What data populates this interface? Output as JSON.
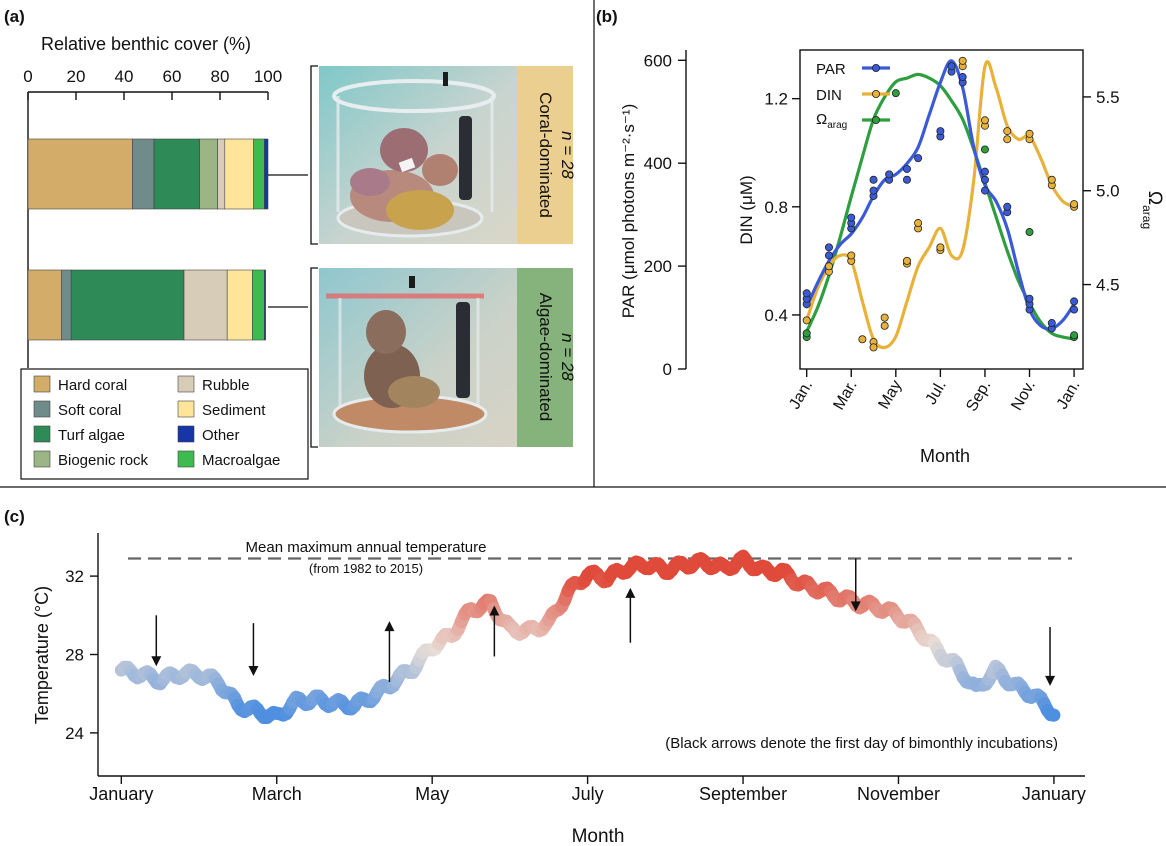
{
  "panel_labels": [
    "(a)",
    "(b)",
    "(c)"
  ],
  "colors": {
    "hard_coral": "#D2AC68",
    "soft_coral": "#6F8B8A",
    "turf_algae": "#2E8B57",
    "biogenic_rock": "#9BB584",
    "rubble": "#D6CCB8",
    "sediment": "#FFE59A",
    "other": "#1535A8",
    "macroalgae": "#3DBB4E",
    "par_line": "#3B5BD6",
    "din_line": "#E8B23A",
    "omega_line": "#2E9E3F",
    "coral_badge": "#EBCF90",
    "algae_badge": "#86B27C",
    "temp_cold": "#4F8FE0",
    "temp_mid": "#E8DDD6",
    "temp_hot": "#E04A3A"
  },
  "photos": [
    {
      "label": "Coral-dominated",
      "n": "n = 28"
    },
    {
      "label": "Algae-dominated",
      "n": "n = 28"
    }
  ],
  "chart_data": [
    {
      "type": "bar",
      "orientation": "horizontal-stacked",
      "title": "Relative benthic cover (%)",
      "xlim": [
        0,
        100
      ],
      "xticks": [
        "0",
        "20",
        "40",
        "60",
        "80",
        "100"
      ],
      "categories": [
        "Coral-dominated",
        "Algae-dominated"
      ],
      "series": [
        {
          "name": "Hard coral",
          "values": [
            43.5,
            14
          ]
        },
        {
          "name": "Soft coral",
          "values": [
            9,
            4
          ]
        },
        {
          "name": "Turf algae",
          "values": [
            19,
            47
          ]
        },
        {
          "name": "Biogenic rock",
          "values": [
            7.5,
            0
          ]
        },
        {
          "name": "Rubble",
          "values": [
            3,
            18
          ]
        },
        {
          "name": "Sediment",
          "values": [
            12,
            10.5
          ]
        },
        {
          "name": "Macroalgae",
          "values": [
            4.5,
            5
          ]
        },
        {
          "name": "Other",
          "values": [
            1.5,
            0.5
          ]
        }
      ],
      "legend": [
        "Hard coral",
        "Soft coral",
        "Turf algae",
        "Biogenic rock",
        "Rubble",
        "Sediment",
        "Other",
        "Macroalgae"
      ],
      "legend_placement": "bottom"
    },
    {
      "type": "line",
      "xlabel": "Month",
      "xticks": [
        "Jan.",
        "Mar.",
        "May",
        "Jul.",
        "Sep.",
        "Nov.",
        "Jan."
      ],
      "xlim": [
        0.7,
        13.4
      ],
      "y_far_left": {
        "label": "PAR (μmol photons m⁻²·s⁻¹)",
        "lim": [
          0,
          620
        ],
        "ticks": [
          "0",
          "200",
          "400",
          "600"
        ]
      },
      "y_left": {
        "label": "DIN (μM)",
        "lim": [
          0.2,
          1.38
        ],
        "ticks": [
          "0.4",
          "0.8",
          "1.2"
        ]
      },
      "y_right": {
        "label": "Ωarag",
        "lim": [
          4.05,
          5.75
        ],
        "ticks": [
          "4.5",
          "5.0",
          "5.5"
        ]
      },
      "legend": [
        "PAR",
        "DIN",
        "Ωarag"
      ],
      "legend_placement": "top-left",
      "series": [
        {
          "name": "PAR",
          "axis": "left-DIN-scale",
          "curve_x": [
            1,
            1.5,
            2,
            2.5,
            3,
            3.5,
            4,
            4.5,
            5,
            5.5,
            6,
            6.5,
            7,
            7.5,
            8,
            8.5,
            9,
            9.5,
            10,
            10.5,
            11,
            11.5,
            12,
            12.5,
            13
          ],
          "curve_y": [
            0.43,
            0.52,
            0.6,
            0.66,
            0.7,
            0.76,
            0.84,
            0.9,
            0.92,
            0.96,
            1.02,
            1.14,
            1.26,
            1.34,
            1.24,
            1.02,
            0.88,
            0.82,
            0.72,
            0.56,
            0.42,
            0.36,
            0.35,
            0.38,
            0.44
          ],
          "points_x": [
            1,
            1,
            1,
            2,
            2,
            3,
            3,
            3,
            4,
            4,
            4,
            4.7,
            4.7,
            5.5,
            5.5,
            6,
            7,
            7,
            7.5,
            7.5,
            8,
            8,
            9,
            9,
            9,
            10,
            10,
            11,
            11,
            11,
            12,
            12,
            13,
            13
          ],
          "points_y": [
            0.44,
            0.46,
            0.48,
            0.62,
            0.65,
            0.72,
            0.74,
            0.76,
            0.84,
            0.86,
            0.9,
            0.9,
            0.92,
            0.9,
            0.94,
            0.98,
            1.06,
            1.08,
            1.3,
            1.32,
            1.26,
            1.28,
            0.9,
            0.93,
            0.86,
            0.78,
            0.8,
            0.42,
            0.44,
            0.46,
            0.35,
            0.37,
            0.42,
            0.45
          ]
        },
        {
          "name": "DIN",
          "axis": "left",
          "curve_x": [
            1,
            1.5,
            2,
            2.5,
            3,
            3.5,
            4,
            4.5,
            5,
            5.5,
            6,
            6.5,
            7,
            7.5,
            8,
            8.5,
            9,
            9.5,
            10,
            10.5,
            11,
            11.5,
            12,
            12.5,
            13
          ],
          "curve_y": [
            0.38,
            0.5,
            0.58,
            0.62,
            0.6,
            0.45,
            0.31,
            0.28,
            0.32,
            0.45,
            0.58,
            0.65,
            0.72,
            0.62,
            0.64,
            0.9,
            1.32,
            1.24,
            1.1,
            1.05,
            1.06,
            0.98,
            0.88,
            0.82,
            0.8
          ],
          "points_x": [
            1,
            2,
            2,
            3,
            3,
            3.5,
            4,
            4,
            4.5,
            4.5,
            5.5,
            5.5,
            6,
            6,
            7,
            7,
            8,
            8,
            9,
            9,
            10,
            10,
            11,
            11,
            12,
            12,
            13,
            13
          ],
          "points_y": [
            0.38,
            0.56,
            0.58,
            0.6,
            0.62,
            0.31,
            0.3,
            0.28,
            0.36,
            0.39,
            0.59,
            0.6,
            0.72,
            0.74,
            0.64,
            0.65,
            1.32,
            1.34,
            1.1,
            1.12,
            1.08,
            1.05,
            1.05,
            1.07,
            0.88,
            0.9,
            0.8,
            0.81
          ]
        },
        {
          "name": "Ωarag",
          "axis": "right",
          "curve_x": [
            1,
            1.5,
            2,
            2.5,
            3,
            3.5,
            4,
            4.5,
            5,
            5.5,
            6,
            6.5,
            7,
            7.5,
            8,
            8.5,
            9,
            9.5,
            10,
            10.5,
            11,
            11.5,
            12,
            12.5,
            13
          ],
          "curve_y": [
            4.25,
            4.38,
            4.55,
            4.75,
            4.97,
            5.18,
            5.38,
            5.5,
            5.58,
            5.6,
            5.62,
            5.6,
            5.56,
            5.48,
            5.38,
            5.22,
            5.04,
            4.86,
            4.68,
            4.52,
            4.4,
            4.3,
            4.24,
            4.22,
            4.21
          ],
          "points_x": [
            1,
            1,
            5,
            9,
            11,
            13,
            13
          ],
          "points_y": [
            4.22,
            4.24,
            5.52,
            5.22,
            4.78,
            4.22,
            4.23
          ]
        }
      ]
    },
    {
      "type": "line",
      "xlabel": "Month",
      "ylabel": "Temperature (°C)",
      "xticks": [
        "January",
        "March",
        "May",
        "July",
        "September",
        "November",
        "January"
      ],
      "yticks": [
        "24",
        "28",
        "32"
      ],
      "ylim": [
        21.8,
        34.2
      ],
      "xlim": [
        -0.3,
        12.4
      ],
      "reference_line": {
        "label": "Mean maximum annual temperature",
        "sublabel": "(from 1982 to 2015)",
        "value": 32.9
      },
      "note": "(Black arrows denote the first day of bimonthly incubations)",
      "series": [
        {
          "name": "Temperature",
          "x": [
            0,
            0.25,
            0.5,
            0.75,
            1,
            1.25,
            1.5,
            1.75,
            2,
            2.25,
            2.5,
            2.75,
            3,
            3.25,
            3.5,
            3.75,
            4,
            4.25,
            4.5,
            4.75,
            5,
            5.25,
            5.5,
            5.75,
            6,
            6.25,
            6.5,
            6.75,
            7,
            7.25,
            7.5,
            7.75,
            8,
            8.25,
            8.5,
            8.75,
            9,
            9.25,
            9.5,
            9.75,
            10,
            10.25,
            10.5,
            10.75,
            11,
            11.25,
            11.5,
            11.75,
            12
          ],
          "y": [
            27.2,
            27.0,
            26.7,
            27.0,
            27.0,
            26.6,
            25.4,
            25.1,
            24.8,
            25.6,
            25.7,
            25.5,
            25.4,
            25.9,
            26.6,
            27.3,
            28.4,
            29.0,
            30.3,
            30.6,
            29.3,
            29.2,
            29.6,
            31.2,
            32.1,
            31.9,
            32.4,
            32.6,
            32.3,
            32.6,
            32.7,
            32.4,
            32.8,
            32.3,
            32.2,
            31.6,
            31.3,
            30.9,
            30.6,
            30.4,
            30.0,
            29.3,
            28.2,
            27.4,
            26.2,
            27.2,
            26.4,
            25.9,
            25.0
          ]
        }
      ],
      "arrows": [
        {
          "x": 0.45,
          "direction": "down",
          "y_from": 30.0,
          "y_to": 27.4
        },
        {
          "x": 1.7,
          "direction": "down",
          "y_from": 29.6,
          "y_to": 26.9
        },
        {
          "x": 3.45,
          "direction": "up",
          "y_from": 26.6,
          "y_to": 29.7
        },
        {
          "x": 4.8,
          "direction": "up",
          "y_from": 27.9,
          "y_to": 30.5
        },
        {
          "x": 6.55,
          "direction": "up",
          "y_from": 28.6,
          "y_to": 31.4
        },
        {
          "x": 9.45,
          "direction": "down",
          "y_from": 32.9,
          "y_to": 30.2
        },
        {
          "x": 11.95,
          "direction": "down",
          "y_from": 29.4,
          "y_to": 26.4
        }
      ]
    }
  ]
}
